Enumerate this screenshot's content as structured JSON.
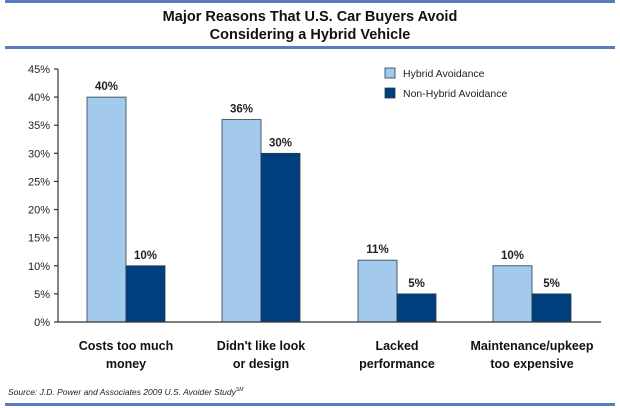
{
  "chart_data": {
    "type": "bar",
    "title": "Major Reasons That U.S. Car Buyers Avoid Considering a Hybrid Vehicle",
    "title_lines": [
      "Major Reasons That U.S. Car Buyers Avoid",
      "Considering a Hybrid Vehicle"
    ],
    "categories": [
      [
        "Costs too much",
        "money"
      ],
      [
        "Didn't like look",
        "or design"
      ],
      [
        "Lacked",
        "performance"
      ],
      [
        "Maintenance/upkeep",
        "too expensive"
      ]
    ],
    "series": [
      {
        "name": "Hybrid Avoidance",
        "color": "#a3c9ec",
        "values": [
          40,
          36,
          11,
          10
        ],
        "labels": [
          "40%",
          "36%",
          "11%",
          "10%"
        ]
      },
      {
        "name": "Non-Hybrid Avoidance",
        "color": "#003f7d",
        "values": [
          10,
          30,
          5,
          5
        ],
        "labels": [
          "10%",
          "30%",
          "5%",
          "5%"
        ]
      }
    ],
    "xlabel": "",
    "ylabel": "",
    "ylim": [
      0,
      45
    ],
    "yticks": [
      "0%",
      "5%",
      "10%",
      "15%",
      "20%",
      "25%",
      "30%",
      "35%",
      "40%",
      "45%"
    ],
    "grid": false,
    "legend": "top-right"
  },
  "source": {
    "text": "Source: J.D. Power and Associates 2009 U.S. Avoider Study",
    "mark": "SM"
  }
}
